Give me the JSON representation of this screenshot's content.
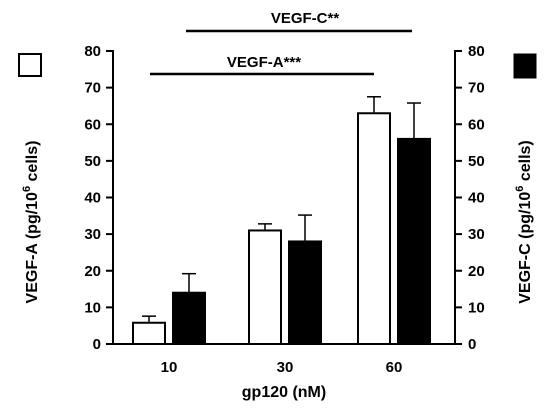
{
  "chart_data": {
    "type": "bar",
    "categories": [
      "10",
      "30",
      "60"
    ],
    "series": [
      {
        "name": "VEGF-A",
        "axis": "left",
        "fill": "#ffffff",
        "values": [
          5.8,
          31.0,
          63.0
        ],
        "errors": [
          1.8,
          1.8,
          4.5
        ]
      },
      {
        "name": "VEGF-C",
        "axis": "right",
        "fill": "#000000",
        "values": [
          14.0,
          28.0,
          56.0
        ],
        "errors": [
          5.2,
          7.2,
          9.8
        ]
      }
    ],
    "xlabel": "gp120 (nM)",
    "ylabel_left": {
      "main": "VEGF-A (pg/10",
      "sup": "6",
      "tail": " cells)"
    },
    "ylabel_right": {
      "main": "VEGF-C (pg/10",
      "sup": "6",
      "tail": " cells)"
    },
    "ylim": [
      0,
      80
    ],
    "yticks": [
      "0",
      "10",
      "20",
      "30",
      "40",
      "50",
      "60",
      "70",
      "80"
    ],
    "grid": false,
    "significance": [
      {
        "label": "VEGF-C**",
        "from_category": "10",
        "to_category": "60",
        "extends_past_last": true
      },
      {
        "label": "VEGF-A***",
        "from_category": "10",
        "to_category": "60"
      }
    ]
  }
}
